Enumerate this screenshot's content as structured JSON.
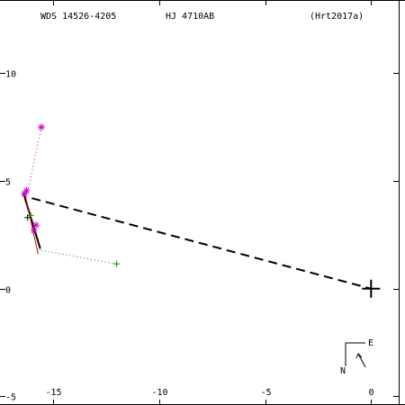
{
  "header": {
    "wds": "WDS 14526-4205",
    "name": "HJ 4710AB",
    "ref": "(Hrt2017a)"
  },
  "compass": {
    "east": "E",
    "north": "N"
  },
  "chart_data": {
    "type": "scatter",
    "title": "",
    "xlabel": "",
    "ylabel": "",
    "xlim": [
      -17.5,
      1.6
    ],
    "ylim": [
      -5.4,
      13.4
    ],
    "grid": false,
    "x_ticks": [
      {
        "v": -15,
        "label": "-15"
      },
      {
        "v": -10,
        "label": "-10"
      },
      {
        "v": -5,
        "label": "-5"
      },
      {
        "v": 0,
        "label": "0"
      }
    ],
    "y_ticks": [
      {
        "v": 10,
        "label": "10"
      },
      {
        "v": 5,
        "label": "5"
      },
      {
        "v": 0,
        "label": "0"
      },
      {
        "v": -5,
        "label": "-5"
      }
    ],
    "primary": {
      "x": 0,
      "y": 0,
      "color": "#000000"
    },
    "series": [
      {
        "marker": "star",
        "color": "#cc00cc",
        "points": [
          {
            "x": -15.55,
            "y": 7.5
          },
          {
            "x": -16.25,
            "y": 4.55
          },
          {
            "x": -16.35,
            "y": 4.4
          },
          {
            "x": -15.8,
            "y": 2.95
          },
          {
            "x": -15.9,
            "y": 2.7
          }
        ]
      },
      {
        "marker": "plus",
        "color": "#009900",
        "points": [
          {
            "x": -16.05,
            "y": 3.4
          },
          {
            "x": -12.0,
            "y": 1.15
          }
        ]
      },
      {
        "marker": "plus",
        "color": "#000000",
        "points": [
          {
            "x": -16.2,
            "y": 3.3
          }
        ]
      }
    ],
    "residuals": [
      {
        "color": "#cc00cc",
        "x1": -15.55,
        "y1": 7.5,
        "x2": -16.2,
        "y2": 4.5
      },
      {
        "color": "#009900",
        "x1": -12.0,
        "y1": 1.15,
        "x2": -15.7,
        "y2": 1.8
      }
    ],
    "orbit_lines": [
      {
        "color": "#000000",
        "width": 2,
        "x1": -16.4,
        "y1": 4.45,
        "x2": -15.6,
        "y2": 1.85
      },
      {
        "color": "#cc0000",
        "width": 1,
        "x1": -16.3,
        "y1": 4.3,
        "x2": -15.7,
        "y2": 1.6
      }
    ],
    "node_line": {
      "x1": -16.0,
      "y1": 4.2,
      "x2": 0,
      "y2": 0
    }
  }
}
